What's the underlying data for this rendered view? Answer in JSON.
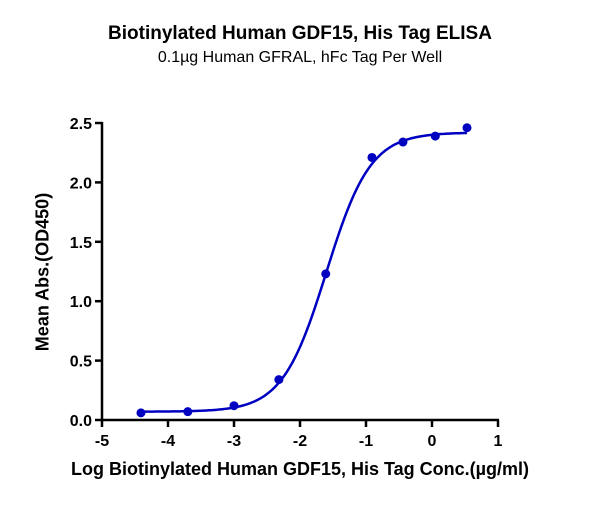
{
  "chart_data": {
    "type": "scatter",
    "title": "Biotinylated Human GDF15, His Tag ELISA",
    "subtitle": "0.1µg Human GFRAL, hFc Tag Per Well",
    "xlabel": "Log Biotinylated Human GDF15, His Tag Conc.(µg/ml)",
    "ylabel": "Mean Abs.(OD450)",
    "xlim": [
      -5,
      1
    ],
    "ylim": [
      0,
      2.5
    ],
    "x_ticks": [
      "-5",
      "-4",
      "-3",
      "-2",
      "-1",
      "0",
      "1"
    ],
    "y_ticks": [
      "0.0",
      "0.5",
      "1.0",
      "1.5",
      "2.0",
      "2.5"
    ],
    "grid": false,
    "legend": null,
    "series": [
      {
        "name": "Biotinylated Human GDF15, His Tag",
        "color": "#0000C0",
        "x": [
          -4.41,
          -3.7,
          -3.0,
          -2.32,
          -1.61,
          -0.91,
          -0.44,
          0.05,
          0.53
        ],
        "y": [
          0.06,
          0.07,
          0.12,
          0.34,
          1.23,
          2.21,
          2.34,
          2.39,
          2.46
        ],
        "fit": {
          "model": "4PL",
          "bottom": 0.07,
          "top": 2.42,
          "logEC50": -1.6,
          "hill_slope": 1.3
        }
      }
    ]
  }
}
